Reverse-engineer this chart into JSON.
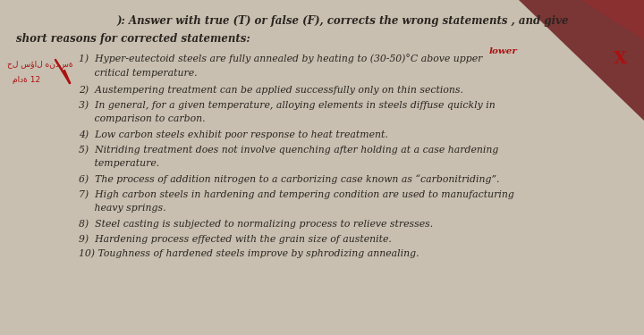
{
  "bg_color": "#c8bfb0",
  "paper_color": "#ddd8cc",
  "corner_color": "#7a3535",
  "title_line1": "): Answer with true (T) or false (F), corrects the wrong statements , and give",
  "title_line2": "short reasons for corrected statements:",
  "annotation_lower": "lower",
  "annotation_x": "X",
  "item1_line1": "1)  Hyper-eutectoid steels are fully annealed by heating to (30-50)°C above upper",
  "item1_line2": "     critical temperature.",
  "item2": "2)  Austempering treatment can be applied successfully only on thin sections.",
  "item3_line1": "3)  In general, for a given temperature, alloying elements in steels diffuse quickly in",
  "item3_line2": "     comparison to carbon.",
  "item4": "4)  Low carbon steels exhibit poor response to heat treatment.",
  "item5_line1": "5)  Nitriding treatment does not involve quenching after holding at a case hardening",
  "item5_line2": "     temperature.",
  "item6": "6)  The process of addition nitrogen to a carborizing case known as “carbonitriding”.",
  "item7_line1": "7)  High carbon steels in hardening and tempering condition are used to manufacturing",
  "item7_line2": "     heavy springs.",
  "item8": "8)  Steel casting is subjected to normalizing process to relieve stresses.",
  "item9": "9)  Hardening process effected with the grain size of austenite.",
  "item10": "10) Toughness of hardened steels improve by sphrodizing annealing.",
  "main_font_size": 7.8,
  "title_font_size": 8.5,
  "text_color": "#2a2520",
  "red_color": "#aa1111"
}
